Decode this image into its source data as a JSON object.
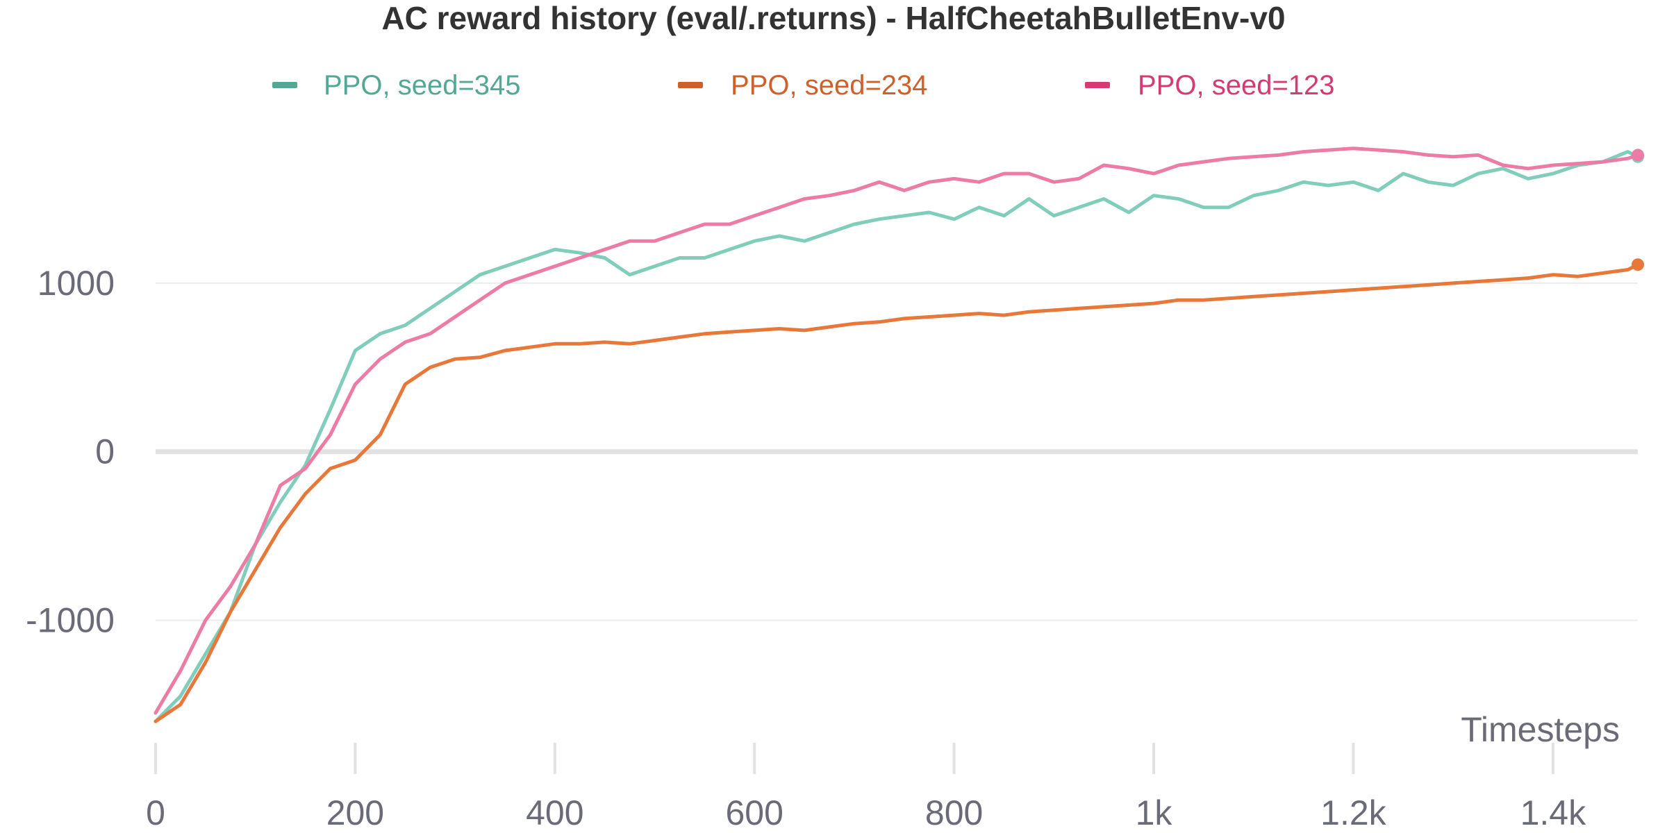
{
  "chart_data": {
    "type": "line",
    "title": "AC reward history (eval/.returns) - HalfCheetahBulletEnv-v0",
    "xlabel": "Timesteps",
    "ylabel": "",
    "xlim": [
      0,
      1485
    ],
    "ylim": [
      -1830,
      1980
    ],
    "x_ticks": [
      0,
      200,
      400,
      600,
      800,
      1000,
      1200,
      1400
    ],
    "x_tick_labels": [
      "0",
      "200",
      "400",
      "600",
      "800",
      "1k",
      "1.2k",
      "1.4k"
    ],
    "y_ticks": [
      -1000,
      0,
      1000
    ],
    "y_tick_labels": [
      "-1000",
      "0",
      "1000"
    ],
    "grid": true,
    "legend_position": "top",
    "series": [
      {
        "name": "PPO, seed=345",
        "color": "#81cdbb",
        "legend_color": "#52a894",
        "x": [
          0,
          25,
          50,
          75,
          100,
          125,
          150,
          175,
          200,
          225,
          250,
          275,
          300,
          325,
          350,
          375,
          400,
          425,
          450,
          475,
          500,
          525,
          550,
          575,
          600,
          625,
          650,
          675,
          700,
          725,
          750,
          775,
          800,
          825,
          850,
          875,
          900,
          925,
          950,
          975,
          1000,
          1025,
          1050,
          1075,
          1100,
          1125,
          1150,
          1175,
          1200,
          1225,
          1250,
          1275,
          1300,
          1325,
          1350,
          1375,
          1400,
          1425,
          1450,
          1475,
          1485
        ],
        "y": [
          -1600,
          -1450,
          -1200,
          -950,
          -550,
          -300,
          -80,
          250,
          600,
          700,
          750,
          850,
          950,
          1050,
          1100,
          1150,
          1200,
          1180,
          1150,
          1050,
          1100,
          1150,
          1150,
          1200,
          1250,
          1280,
          1250,
          1300,
          1350,
          1380,
          1400,
          1420,
          1380,
          1450,
          1400,
          1500,
          1400,
          1450,
          1500,
          1420,
          1520,
          1500,
          1450,
          1450,
          1520,
          1550,
          1600,
          1580,
          1600,
          1550,
          1650,
          1600,
          1580,
          1650,
          1680,
          1620,
          1650,
          1700,
          1720,
          1780,
          1750
        ]
      },
      {
        "name": "PPO, seed=234",
        "color": "#e8773a",
        "legend_color": "#d0602a",
        "x": [
          0,
          25,
          50,
          75,
          100,
          125,
          150,
          175,
          200,
          225,
          250,
          275,
          300,
          325,
          350,
          375,
          400,
          425,
          450,
          475,
          500,
          525,
          550,
          575,
          600,
          625,
          650,
          675,
          700,
          725,
          750,
          775,
          800,
          825,
          850,
          875,
          900,
          925,
          950,
          975,
          1000,
          1025,
          1050,
          1075,
          1100,
          1125,
          1150,
          1175,
          1200,
          1225,
          1250,
          1275,
          1300,
          1325,
          1350,
          1375,
          1400,
          1425,
          1450,
          1475,
          1485
        ],
        "y": [
          -1600,
          -1500,
          -1250,
          -950,
          -700,
          -450,
          -250,
          -100,
          -50,
          100,
          400,
          500,
          550,
          560,
          600,
          620,
          640,
          640,
          650,
          640,
          660,
          680,
          700,
          710,
          720,
          730,
          720,
          740,
          760,
          770,
          790,
          800,
          810,
          820,
          810,
          830,
          840,
          850,
          860,
          870,
          880,
          900,
          900,
          910,
          920,
          930,
          940,
          950,
          960,
          970,
          980,
          990,
          1000,
          1010,
          1020,
          1030,
          1050,
          1040,
          1060,
          1080,
          1110
        ]
      },
      {
        "name": "PPO, seed=123",
        "color": "#ec7ca6",
        "legend_color": "#d63a72",
        "x": [
          0,
          25,
          50,
          75,
          100,
          125,
          150,
          175,
          200,
          225,
          250,
          275,
          300,
          325,
          350,
          375,
          400,
          425,
          450,
          475,
          500,
          525,
          550,
          575,
          600,
          625,
          650,
          675,
          700,
          725,
          750,
          775,
          800,
          825,
          850,
          875,
          900,
          925,
          950,
          975,
          1000,
          1025,
          1050,
          1075,
          1100,
          1125,
          1150,
          1175,
          1200,
          1225,
          1250,
          1275,
          1300,
          1325,
          1350,
          1375,
          1400,
          1425,
          1450,
          1475,
          1485
        ],
        "y": [
          -1550,
          -1300,
          -1000,
          -800,
          -550,
          -200,
          -100,
          100,
          400,
          550,
          650,
          700,
          800,
          900,
          1000,
          1050,
          1100,
          1150,
          1200,
          1250,
          1250,
          1300,
          1350,
          1350,
          1400,
          1450,
          1500,
          1520,
          1550,
          1600,
          1550,
          1600,
          1620,
          1600,
          1650,
          1650,
          1600,
          1620,
          1700,
          1680,
          1650,
          1700,
          1720,
          1740,
          1750,
          1760,
          1780,
          1790,
          1800,
          1790,
          1780,
          1760,
          1750,
          1760,
          1700,
          1680,
          1700,
          1710,
          1720,
          1740,
          1760
        ]
      }
    ]
  }
}
